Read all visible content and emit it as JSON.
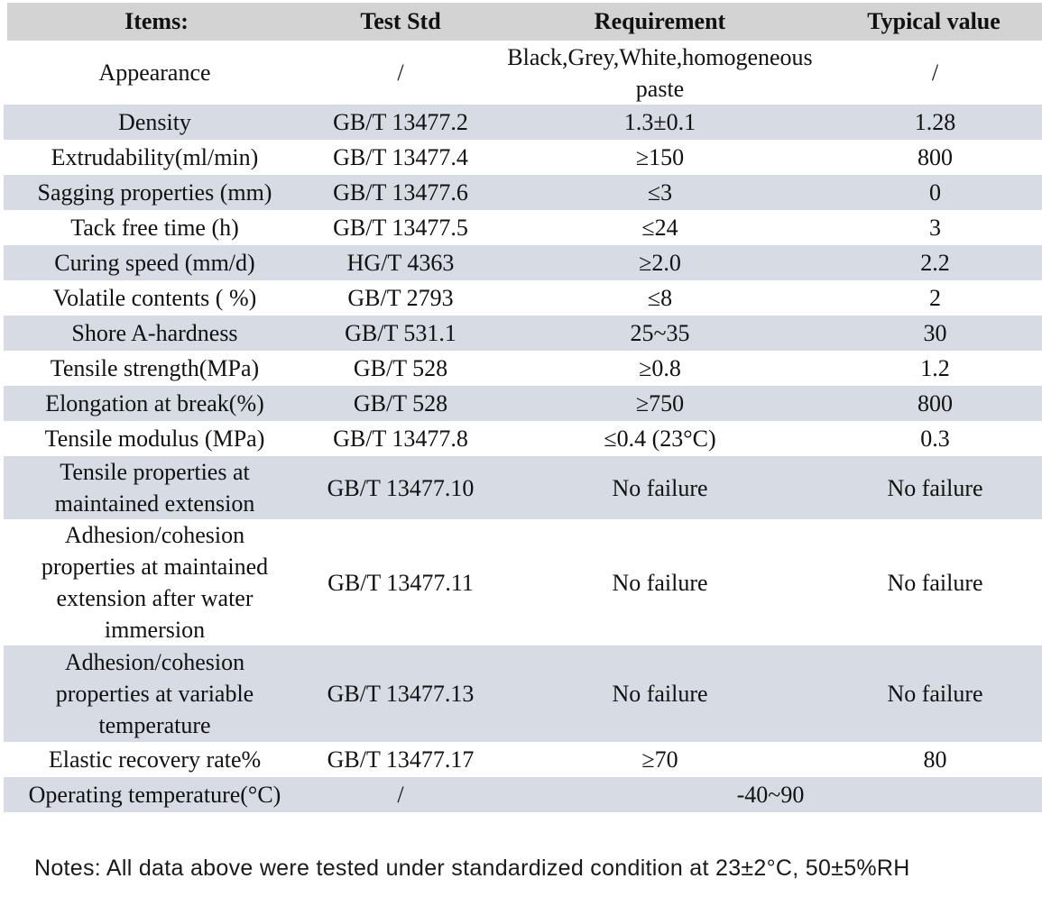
{
  "colors": {
    "header_bg": "#d3d3d3",
    "stripe_bg": "#d6dbe4",
    "text": "#111111"
  },
  "table": {
    "headers": {
      "items": "Items:",
      "test_std": "Test Std",
      "requirement": "Requirement",
      "typical_value": "Typical value"
    },
    "rows": [
      {
        "item": "Appearance",
        "test_std": "/",
        "requirement": "Black,Grey,White,homogeneous\npaste",
        "typical_value": "/"
      },
      {
        "item": "Density",
        "test_std": "GB/T 13477.2",
        "requirement": "1.3±0.1",
        "typical_value": "1.28"
      },
      {
        "item": "Extrudability(ml/min)",
        "test_std": "GB/T 13477.4",
        "requirement": "≥150",
        "typical_value": "800"
      },
      {
        "item": "Sagging properties (mm)",
        "test_std": "GB/T 13477.6",
        "requirement": "≤3",
        "typical_value": "0"
      },
      {
        "item": "Tack free time (h)",
        "test_std": "GB/T 13477.5",
        "requirement": "≤24",
        "typical_value": "3"
      },
      {
        "item": "Curing speed (mm/d)",
        "test_std": "HG/T 4363",
        "requirement": "≥2.0",
        "typical_value": "2.2"
      },
      {
        "item": "Volatile contents ( %)",
        "test_std": "GB/T 2793",
        "requirement": "≤8",
        "typical_value": "2"
      },
      {
        "item": "Shore A-hardness",
        "test_std": "GB/T 531.1",
        "requirement": "25~35",
        "typical_value": "30"
      },
      {
        "item": "Tensile strength(MPa)",
        "test_std": "GB/T 528",
        "requirement": "≥0.8",
        "typical_value": "1.2"
      },
      {
        "item": "Elongation at break(%)",
        "test_std": "GB/T 528",
        "requirement": "≥750",
        "typical_value": "800"
      },
      {
        "item": "Tensile modulus (MPa)",
        "test_std": "GB/T 13477.8",
        "requirement": "≤0.4 (23°C)",
        "typical_value": "0.3"
      },
      {
        "item": "Tensile properties at\nmaintained extension",
        "test_std": "GB/T 13477.10",
        "requirement": "No failure",
        "typical_value": "No failure"
      },
      {
        "item": "Adhesion/cohesion\nproperties at maintained\nextension after water\nimmersion",
        "test_std": "GB/T 13477.11",
        "requirement": "No failure",
        "typical_value": "No failure"
      },
      {
        "item": "Adhesion/cohesion\nproperties at variable\ntemperature",
        "test_std": "GB/T 13477.13",
        "requirement": "No failure",
        "typical_value": "No failure"
      },
      {
        "item": "Elastic recovery rate%",
        "test_std": "GB/T 13477.17",
        "requirement": "≥70",
        "typical_value": "80"
      },
      {
        "item": "Operating temperature(°C)",
        "test_std": "/",
        "requirement": "-40~90"
      }
    ]
  },
  "notes": "Notes: All data above were tested under standardized condition at 23±2°C, 50±5%RH"
}
